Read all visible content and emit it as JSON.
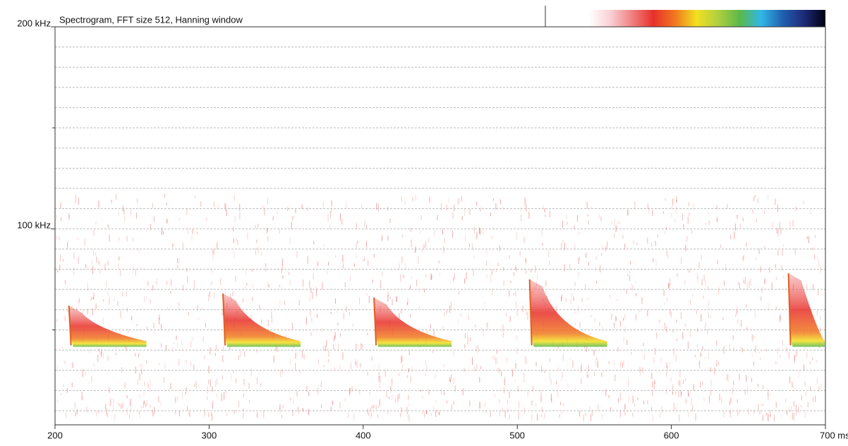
{
  "chart_data": {
    "type": "spectrogram",
    "title": "Spectrogram, FFT size 512, Hanning window",
    "x": [
      209,
      309,
      407,
      508,
      676
    ],
    "values": [
      62,
      68,
      66,
      75,
      78
    ],
    "end_values": [
      43,
      43,
      43,
      43,
      43
    ],
    "xlim": [
      200,
      700
    ],
    "xticks": [
      200,
      300,
      400,
      500,
      600,
      {
        "value": 700,
        "label": "700 ms"
      }
    ],
    "ylim": [
      3,
      200
    ],
    "yticks": [
      {
        "value": 200,
        "label": "200 kHz"
      },
      {
        "value": 100,
        "label": "100 kHz"
      }
    ],
    "yminorticks": [
      150,
      50
    ],
    "grid": true,
    "grid_step": 10,
    "colorbar": [
      "#ffffff",
      "#f9d0d4",
      "#f08080",
      "#e8302a",
      "#f07820",
      "#f2e020",
      "#b0d040",
      "#5cb848",
      "#30b8e8",
      "#2060b0",
      "#1c2a78",
      "#000010"
    ]
  }
}
